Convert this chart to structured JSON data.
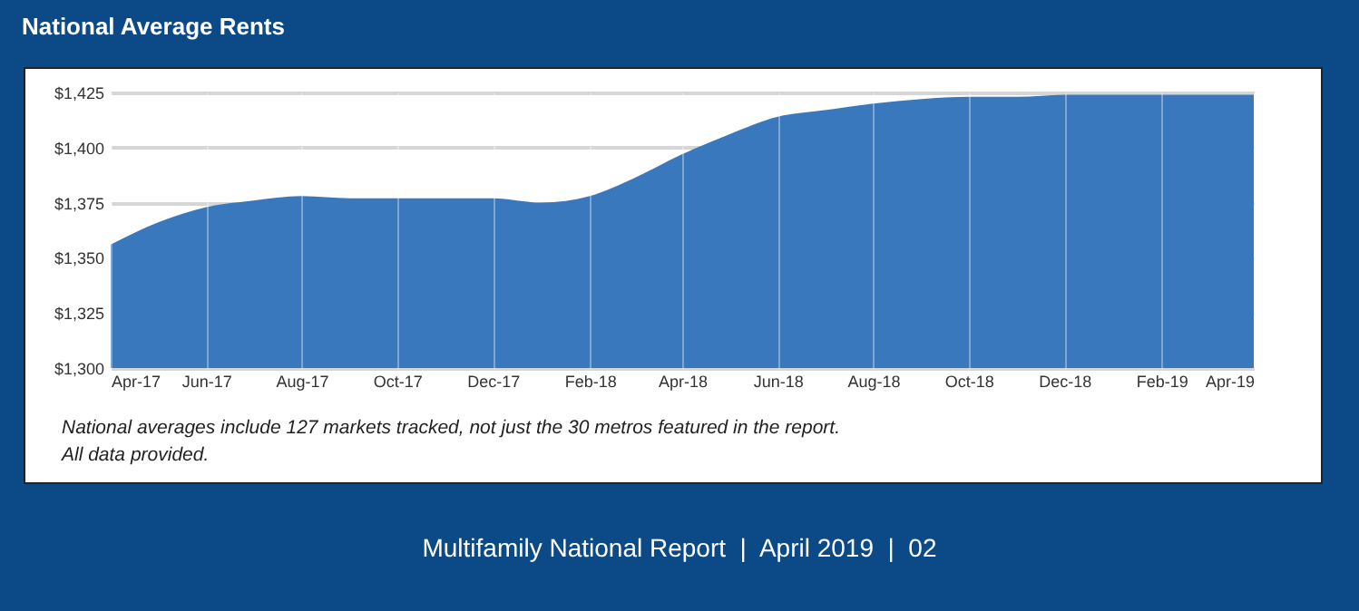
{
  "chart_data": {
    "type": "area",
    "title": "National Average Rents",
    "x": [
      "2017-04",
      "2017-05",
      "2017-06",
      "2017-07",
      "2017-08",
      "2017-09",
      "2017-10",
      "2017-11",
      "2017-12",
      "2018-01",
      "2018-02",
      "2018-03",
      "2018-04",
      "2018-05",
      "2018-06",
      "2018-07",
      "2018-08",
      "2018-09",
      "2018-10",
      "2018-11",
      "2018-12",
      "2019-01",
      "2019-02",
      "2019-03",
      "2019-04"
    ],
    "series": [
      {
        "color": "#3a78bd",
        "values": [
          1356,
          1366,
          1373,
          1376,
          1378,
          1377,
          1377,
          1377,
          1377,
          1375,
          1378,
          1386,
          1397,
          1406,
          1414,
          1417,
          1420,
          1422,
          1423,
          1423,
          1424,
          1424,
          1424,
          1424,
          1424
        ]
      }
    ],
    "xlim": [
      "2017-04",
      "2019-04"
    ],
    "xticks": [
      {
        "value": "2017-04",
        "label": "Apr-17"
      },
      {
        "value": "2017-06",
        "label": "Jun-17"
      },
      {
        "value": "2017-08",
        "label": "Aug-17"
      },
      {
        "value": "2017-10",
        "label": "Oct-17"
      },
      {
        "value": "2017-12",
        "label": "Dec-17"
      },
      {
        "value": "2018-02",
        "label": "Feb-18"
      },
      {
        "value": "2018-04",
        "label": "Apr-18"
      },
      {
        "value": "2018-06",
        "label": "Jun-18"
      },
      {
        "value": "2018-08",
        "label": "Aug-18"
      },
      {
        "value": "2018-10",
        "label": "Oct-18"
      },
      {
        "value": "2018-12",
        "label": "Dec-18"
      },
      {
        "value": "2019-02",
        "label": "Feb-19"
      },
      {
        "value": "2019-04",
        "label": "Apr-19"
      }
    ],
    "ylim": [
      1300,
      1425
    ],
    "yticks": [
      {
        "value": 1300,
        "label": "$1,300"
      },
      {
        "value": 1325,
        "label": "$1,325"
      },
      {
        "value": 1350,
        "label": "$1,350"
      },
      {
        "value": 1375,
        "label": "$1,375"
      },
      {
        "value": 1400,
        "label": "$1,400"
      },
      {
        "value": 1425,
        "label": "$1,425"
      }
    ],
    "grid": true,
    "annotations": [
      "National averages include 127 markets tracked, not just the 30 metros featured in the report.",
      "All data provided.",
      "Multifamily National Report  |  April 2019  |  02"
    ]
  }
}
